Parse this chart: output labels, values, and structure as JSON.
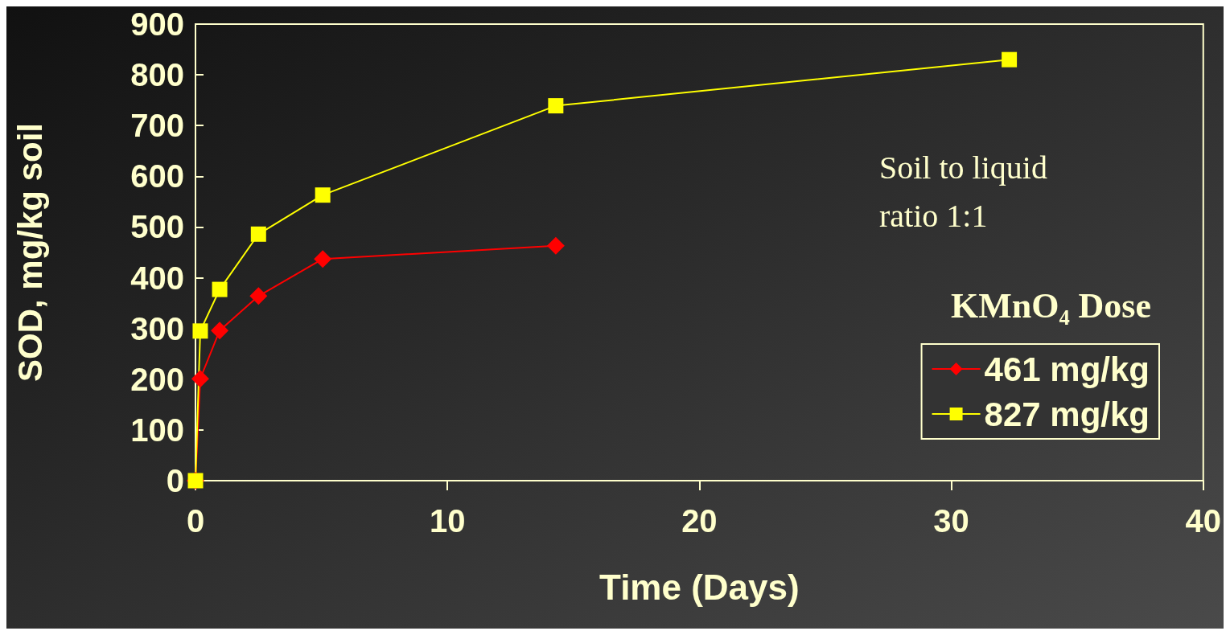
{
  "chart_data": {
    "type": "line",
    "xlabel": "Time (Days)",
    "ylabel": "SOD, mg/kg soil",
    "xlim": [
      0,
      40
    ],
    "xticks": [
      0,
      10,
      20,
      30,
      40
    ],
    "ylim": [
      0,
      900
    ],
    "yticks": [
      0,
      100,
      200,
      300,
      400,
      500,
      600,
      700,
      800,
      900
    ],
    "grid": false,
    "legend": "right",
    "legend_title": "KMnO₄ Dose",
    "annotations": [
      "Soil to liquid ratio 1:1"
    ],
    "series": [
      {
        "name": "461 mg/kg",
        "color": "#ff0000",
        "marker": "diamond",
        "x": [
          0,
          0.19,
          0.96,
          2.5,
          5.05,
          14.3
        ],
        "values": [
          0,
          201,
          296,
          364,
          437,
          463
        ]
      },
      {
        "name": "827 mg/kg",
        "color": "#ffff00",
        "marker": "square",
        "x": [
          0,
          0.19,
          0.96,
          2.5,
          5.05,
          14.3,
          32.3
        ],
        "values": [
          0,
          295,
          377,
          486,
          563,
          739,
          830
        ]
      }
    ]
  }
}
